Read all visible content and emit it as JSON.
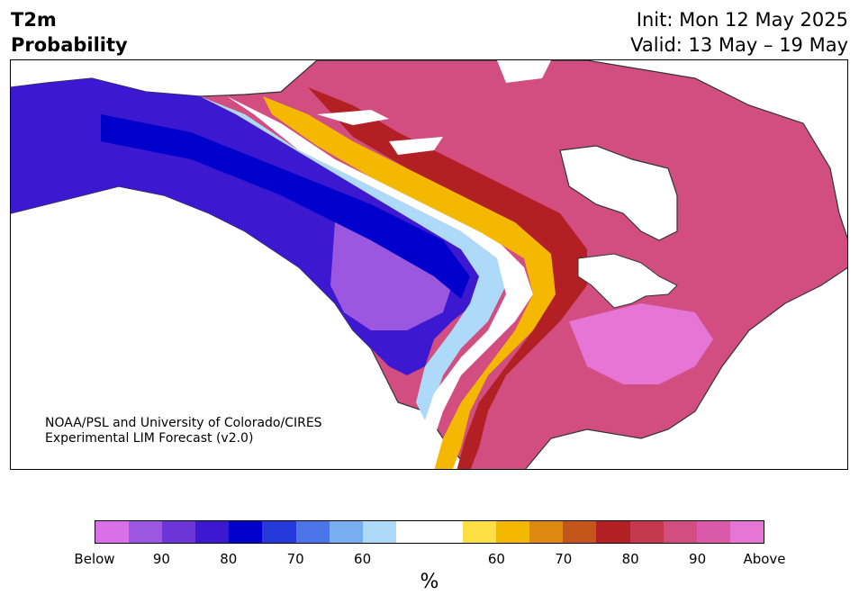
{
  "title": {
    "variable": "T2m",
    "product": "Probability",
    "init": "Init: Mon 12 May 2025",
    "valid": "Valid: 13 May – 19 May"
  },
  "credit": {
    "line1": "NOAA/PSL and University of Colorado/CIRES",
    "line2": "Experimental LIM Forecast (v2.0)"
  },
  "colorbar": {
    "colors": [
      "#da70e8",
      "#9b57e0",
      "#6b35d8",
      "#3c19d0",
      "#0000cd",
      "#2639db",
      "#4b74e8",
      "#77aef2",
      "#addaf9",
      "#ffffff",
      "#ffffff",
      "#ffe044",
      "#f4b800",
      "#de8a10",
      "#c4561b",
      "#b32024",
      "#c6384e",
      "#d24d80",
      "#d85aa8",
      "#e676d6"
    ],
    "ticks": [
      "Below",
      "90",
      "80",
      "70",
      "60",
      "60",
      "70",
      "80",
      "90",
      "Above"
    ],
    "unit": "%"
  }
}
